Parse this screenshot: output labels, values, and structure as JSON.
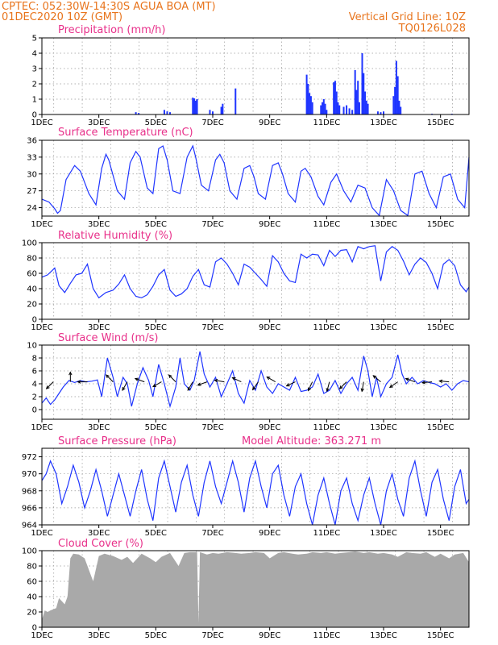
{
  "header": {
    "left_line1": "CPTEC:   052:30W-14:30S   AGUA BOA (MT)",
    "left_line2": "01DEC2020 10Z (GMT)",
    "right_line1": "Vertical Grid Line: 10Z",
    "right_line2": "TQ0126L028"
  },
  "colors": {
    "header": "#e8741c",
    "title": "#e8308a",
    "series": "#1f35ff",
    "cloud": "#a9a9a9",
    "arrow": "#000000"
  },
  "x_axis": {
    "tick_labels": [
      "1DEC",
      "3DEC",
      "5DEC",
      "7DEC",
      "9DEC",
      "11DEC",
      "13DEC",
      "15DEC"
    ],
    "tick_days": [
      1,
      3,
      5,
      7,
      9,
      11,
      13,
      15
    ],
    "range": [
      1,
      16
    ]
  },
  "chart_data": [
    {
      "type": "bar",
      "title": "Precipitation (mm/h)",
      "ylim": [
        0,
        5
      ],
      "yticks": [
        "0",
        "1",
        "2",
        "3",
        "4",
        "5"
      ],
      "points": [
        [
          4.3,
          0.15
        ],
        [
          4.4,
          0.1
        ],
        [
          5.3,
          0.3
        ],
        [
          5.4,
          0.2
        ],
        [
          5.5,
          0.15
        ],
        [
          6.3,
          1.1
        ],
        [
          6.35,
          1.05
        ],
        [
          6.4,
          0.9
        ],
        [
          6.45,
          1.0
        ],
        [
          6.9,
          0.3
        ],
        [
          7.0,
          0.2
        ],
        [
          7.3,
          0.5
        ],
        [
          7.35,
          0.7
        ],
        [
          7.8,
          1.7
        ],
        [
          10.3,
          2.6
        ],
        [
          10.35,
          2.0
        ],
        [
          10.4,
          1.4
        ],
        [
          10.45,
          1.2
        ],
        [
          10.5,
          0.8
        ],
        [
          10.8,
          0.6
        ],
        [
          10.85,
          0.8
        ],
        [
          10.9,
          1.0
        ],
        [
          10.95,
          0.7
        ],
        [
          11.0,
          0.3
        ],
        [
          11.25,
          2.1
        ],
        [
          11.3,
          2.2
        ],
        [
          11.35,
          1.5
        ],
        [
          11.4,
          0.8
        ],
        [
          11.45,
          0.6
        ],
        [
          11.6,
          0.5
        ],
        [
          11.7,
          0.6
        ],
        [
          11.8,
          0.4
        ],
        [
          11.9,
          0.3
        ],
        [
          12.0,
          2.9
        ],
        [
          12.05,
          1.6
        ],
        [
          12.1,
          2.2
        ],
        [
          12.15,
          0.8
        ],
        [
          12.25,
          4.0
        ],
        [
          12.3,
          2.7
        ],
        [
          12.35,
          1.5
        ],
        [
          12.4,
          0.9
        ],
        [
          12.45,
          0.7
        ],
        [
          12.8,
          0.2
        ],
        [
          12.9,
          0.15
        ],
        [
          13.0,
          0.2
        ],
        [
          13.35,
          1.2
        ],
        [
          13.4,
          1.8
        ],
        [
          13.45,
          3.5
        ],
        [
          13.5,
          2.5
        ],
        [
          13.55,
          0.9
        ],
        [
          13.6,
          0.5
        ],
        [
          14.7,
          0.05
        ],
        [
          15.4,
          0.05
        ]
      ]
    },
    {
      "type": "line",
      "title": "Surface Temperature (nC)",
      "ylim": [
        22.5,
        36
      ],
      "yticks": [
        "24",
        "27",
        "30",
        "33",
        "36"
      ],
      "x": [
        1.0,
        1.25,
        1.45,
        1.55,
        1.65,
        1.85,
        2.15,
        2.35,
        2.65,
        2.9,
        3.1,
        3.25,
        3.35,
        3.65,
        3.9,
        4.1,
        4.3,
        4.45,
        4.7,
        4.9,
        5.1,
        5.25,
        5.4,
        5.6,
        5.85,
        6.1,
        6.3,
        6.4,
        6.6,
        6.85,
        7.1,
        7.25,
        7.4,
        7.6,
        7.85,
        8.1,
        8.3,
        8.45,
        8.6,
        8.85,
        9.1,
        9.3,
        9.45,
        9.65,
        9.9,
        10.1,
        10.25,
        10.45,
        10.7,
        10.9,
        11.15,
        11.35,
        11.6,
        11.85,
        12.1,
        12.35,
        12.6,
        12.85,
        13.1,
        13.35,
        13.6,
        13.85,
        14.1,
        14.35,
        14.6,
        14.85,
        15.1,
        15.35,
        15.6,
        15.85,
        16.0
      ],
      "y": [
        25.5,
        25.0,
        23.8,
        23.0,
        23.5,
        29.0,
        31.5,
        30.5,
        26.5,
        24.5,
        31.0,
        33.5,
        32.5,
        27.0,
        25.5,
        32.0,
        34.0,
        33.0,
        27.5,
        26.5,
        34.5,
        35.0,
        32.5,
        27.0,
        26.5,
        33.0,
        35.0,
        33.0,
        28.0,
        27.0,
        32.5,
        33.5,
        32.0,
        27.0,
        25.5,
        31.0,
        31.5,
        29.5,
        26.5,
        25.5,
        31.5,
        32.0,
        30.0,
        26.5,
        25.0,
        30.5,
        31.0,
        29.5,
        26.0,
        24.5,
        28.5,
        30.0,
        27.0,
        25.0,
        28.0,
        27.5,
        24.0,
        22.6,
        29.0,
        27.0,
        23.5,
        22.6,
        30.0,
        30.5,
        26.5,
        24.0,
        29.5,
        30.0,
        25.5,
        24.0,
        33.0
      ]
    },
    {
      "type": "line",
      "title": "Relative Humidity (%)",
      "ylim": [
        0,
        100
      ],
      "yticks": [
        "0",
        "20",
        "40",
        "60",
        "80",
        "100"
      ],
      "x": [
        1.0,
        1.2,
        1.45,
        1.6,
        1.8,
        2.0,
        2.2,
        2.4,
        2.6,
        2.8,
        3.0,
        3.25,
        3.5,
        3.7,
        3.9,
        4.1,
        4.3,
        4.5,
        4.7,
        4.9,
        5.1,
        5.3,
        5.5,
        5.7,
        5.9,
        6.1,
        6.3,
        6.5,
        6.7,
        6.9,
        7.1,
        7.3,
        7.5,
        7.7,
        7.9,
        8.1,
        8.3,
        8.5,
        8.7,
        8.9,
        9.1,
        9.3,
        9.5,
        9.7,
        9.9,
        10.1,
        10.3,
        10.5,
        10.7,
        10.9,
        11.1,
        11.3,
        11.5,
        11.7,
        11.9,
        12.1,
        12.3,
        12.5,
        12.7,
        12.9,
        13.1,
        13.3,
        13.5,
        13.7,
        13.9,
        14.1,
        14.3,
        14.5,
        14.7,
        14.9,
        15.1,
        15.3,
        15.5,
        15.7,
        15.9,
        16.0
      ],
      "y": [
        55,
        58,
        67,
        44,
        35,
        47,
        58,
        60,
        72,
        40,
        28,
        35,
        38,
        46,
        58,
        40,
        30,
        28,
        32,
        43,
        58,
        65,
        38,
        30,
        33,
        40,
        56,
        65,
        45,
        42,
        75,
        80,
        72,
        60,
        45,
        72,
        68,
        60,
        52,
        43,
        83,
        75,
        60,
        50,
        48,
        85,
        80,
        85,
        84,
        70,
        90,
        82,
        90,
        91,
        75,
        95,
        92,
        95,
        96,
        50,
        88,
        95,
        90,
        76,
        58,
        72,
        80,
        74,
        60,
        40,
        72,
        78,
        70,
        45,
        36,
        42
      ]
    },
    {
      "type": "line",
      "title": "Surface Wind (m/s)",
      "ylim": [
        -1.5,
        10
      ],
      "yticks": [
        "0",
        "2",
        "4",
        "6",
        "8",
        "10"
      ],
      "x": [
        1.0,
        1.15,
        1.3,
        1.45,
        1.6,
        1.75,
        1.95,
        2.15,
        2.35,
        2.55,
        2.75,
        2.95,
        3.1,
        3.3,
        3.5,
        3.65,
        3.85,
        4.0,
        4.15,
        4.35,
        4.55,
        4.75,
        4.9,
        5.1,
        5.3,
        5.5,
        5.7,
        5.85,
        6.0,
        6.2,
        6.35,
        6.55,
        6.7,
        6.9,
        7.1,
        7.3,
        7.5,
        7.7,
        7.9,
        8.1,
        8.3,
        8.5,
        8.7,
        8.9,
        9.1,
        9.3,
        9.5,
        9.7,
        9.9,
        10.1,
        10.3,
        10.5,
        10.7,
        10.9,
        11.1,
        11.3,
        11.5,
        11.7,
        11.9,
        12.1,
        12.3,
        12.45,
        12.6,
        12.75,
        12.9,
        13.1,
        13.3,
        13.5,
        13.65,
        13.8,
        14.0,
        14.2,
        14.4,
        14.6,
        14.8,
        15.0,
        15.2,
        15.4,
        15.6,
        15.8,
        16.0
      ],
      "y": [
        1.0,
        1.8,
        0.8,
        1.5,
        2.5,
        3.5,
        4.5,
        4.2,
        4.5,
        4.3,
        4.4,
        4.6,
        2.0,
        8.0,
        5.0,
        2.0,
        5.0,
        4.0,
        0.5,
        4.0,
        6.5,
        4.5,
        2.0,
        7.0,
        4.0,
        0.5,
        3.5,
        8.0,
        4.0,
        3.0,
        4.5,
        9.0,
        5.5,
        3.5,
        5.0,
        2.0,
        4.0,
        6.0,
        2.5,
        1.0,
        4.5,
        3.0,
        6.0,
        3.5,
        2.5,
        4.0,
        3.5,
        3.0,
        5.0,
        2.8,
        3.0,
        3.5,
        5.5,
        2.5,
        3.0,
        4.5,
        2.5,
        4.0,
        5.0,
        3.0,
        8.3,
        6.0,
        2.0,
        5.0,
        2.0,
        4.0,
        5.0,
        8.5,
        5.5,
        4.0,
        5.0,
        4.0,
        4.5,
        4.2,
        4.0,
        3.5,
        4.0,
        3.0,
        4.0,
        4.5,
        4.3
      ],
      "arrow_days": [
        1.4,
        2.0,
        2.6,
        3.5,
        4.0,
        4.6,
        5.2,
        5.7,
        6.3,
        6.8,
        7.4,
        8.0,
        8.6,
        9.2,
        9.9,
        10.5,
        11.1,
        11.7,
        12.3,
        12.9,
        13.5,
        14.1,
        14.7,
        15.3
      ],
      "arrow_angles_deg": [
        225,
        90,
        180,
        135,
        240,
        160,
        210,
        135,
        240,
        200,
        170,
        155,
        235,
        150,
        205,
        245,
        255,
        225,
        260,
        140,
        215,
        160,
        185,
        175
      ]
    },
    {
      "type": "line",
      "title": "Surface Pressure (hPa)",
      "ylim": [
        964,
        973
      ],
      "yticks": [
        "964",
        "966",
        "968",
        "970",
        "972"
      ],
      "x": [
        1.0,
        1.15,
        1.3,
        1.5,
        1.7,
        1.9,
        2.1,
        2.3,
        2.5,
        2.7,
        2.9,
        3.1,
        3.3,
        3.5,
        3.7,
        3.9,
        4.1,
        4.3,
        4.5,
        4.7,
        4.9,
        5.1,
        5.3,
        5.5,
        5.7,
        5.9,
        6.1,
        6.3,
        6.5,
        6.7,
        6.9,
        7.1,
        7.3,
        7.5,
        7.7,
        7.9,
        8.1,
        8.3,
        8.5,
        8.7,
        8.9,
        9.1,
        9.3,
        9.5,
        9.7,
        9.9,
        10.1,
        10.3,
        10.5,
        10.7,
        10.9,
        11.1,
        11.3,
        11.5,
        11.7,
        11.9,
        12.1,
        12.3,
        12.5,
        12.7,
        12.9,
        13.1,
        13.3,
        13.5,
        13.7,
        13.9,
        14.1,
        14.3,
        14.5,
        14.7,
        14.9,
        15.1,
        15.3,
        15.5,
        15.7,
        15.9,
        16.0
      ],
      "y": [
        969.2,
        970.0,
        971.5,
        970.0,
        966.5,
        968.5,
        971.0,
        969.0,
        966.0,
        968.0,
        970.5,
        968.0,
        965.0,
        967.5,
        970.0,
        967.5,
        965.0,
        968.0,
        970.5,
        967.0,
        964.5,
        969.5,
        971.5,
        968.5,
        965.5,
        969.0,
        971.0,
        967.5,
        965.0,
        969.0,
        971.5,
        968.5,
        966.5,
        969.0,
        971.5,
        969.0,
        965.5,
        969.5,
        971.5,
        968.5,
        966.0,
        970.0,
        971.0,
        967.5,
        965.0,
        968.5,
        970.0,
        966.5,
        964.0,
        967.5,
        969.5,
        966.5,
        964.0,
        968.0,
        969.5,
        966.5,
        964.5,
        967.5,
        969.5,
        966.5,
        964.0,
        968.0,
        970.0,
        967.0,
        965.0,
        969.5,
        971.5,
        968.0,
        965.0,
        969.0,
        970.5,
        967.0,
        964.5,
        968.5,
        970.5,
        966.5,
        967.0
      ],
      "annotation": "Model Altitude: 363.271 m"
    },
    {
      "type": "area",
      "title": "Cloud Cover (%)",
      "ylim": [
        0,
        100
      ],
      "yticks": [
        "0",
        "20",
        "40",
        "60",
        "80",
        "100"
      ],
      "x": [
        1.0,
        1.1,
        1.2,
        1.3,
        1.5,
        1.6,
        1.8,
        1.9,
        2.0,
        2.1,
        2.3,
        2.5,
        2.8,
        3.0,
        3.2,
        3.5,
        3.8,
        4.0,
        4.2,
        4.5,
        4.8,
        5.0,
        5.2,
        5.5,
        5.8,
        6.0,
        6.2,
        6.45,
        6.5,
        6.55,
        6.8,
        7.0,
        7.2,
        7.5,
        7.8,
        8.0,
        8.3,
        8.5,
        8.8,
        9.0,
        9.3,
        9.5,
        9.8,
        10.0,
        10.3,
        10.5,
        10.8,
        11.0,
        11.3,
        11.5,
        11.8,
        12.0,
        12.3,
        12.5,
        12.8,
        13.0,
        13.3,
        13.5,
        13.8,
        14.0,
        14.3,
        14.5,
        14.8,
        15.0,
        15.3,
        15.5,
        15.8,
        16.0
      ],
      "y": [
        10,
        22,
        20,
        22,
        25,
        38,
        30,
        40,
        90,
        96,
        95,
        90,
        60,
        93,
        96,
        93,
        88,
        92,
        84,
        96,
        90,
        85,
        92,
        97,
        80,
        97,
        98,
        98,
        6,
        98,
        95,
        97,
        96,
        98,
        97,
        96,
        97,
        98,
        97,
        90,
        97,
        98,
        96,
        95,
        96,
        98,
        97,
        98,
        96,
        97,
        98,
        99,
        97,
        98,
        96,
        97,
        95,
        92,
        98,
        97,
        96,
        98,
        92,
        96,
        90,
        95,
        97,
        85
      ]
    }
  ]
}
